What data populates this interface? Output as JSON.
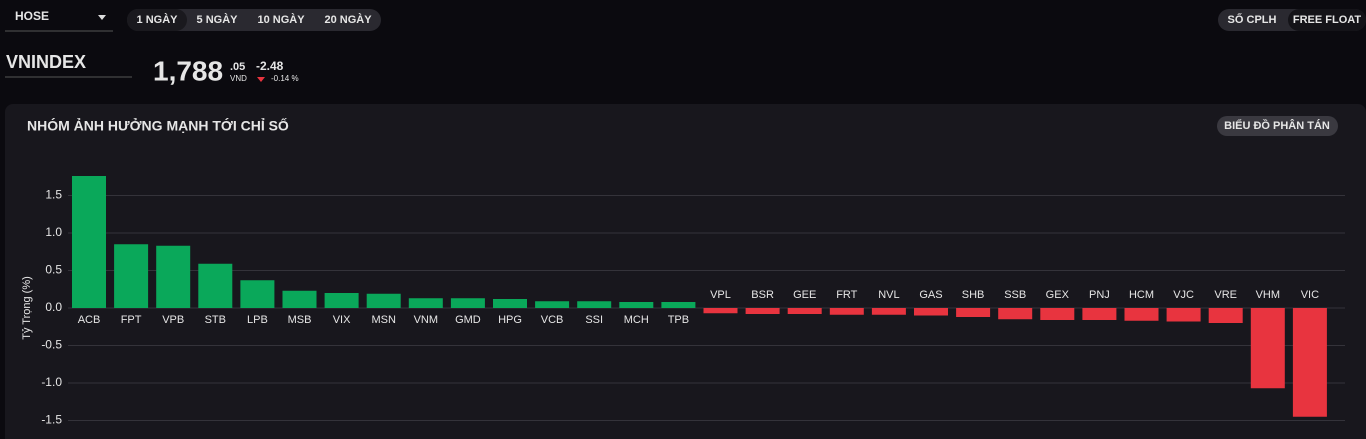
{
  "header": {
    "exchange": "HOSE",
    "periods": [
      "1 NGÀY",
      "5 NGÀY",
      "10 NGÀY",
      "20 NGÀY"
    ],
    "weights": [
      "SỐ CPLH",
      "FREE FLOAT"
    ]
  },
  "index": {
    "name": "VNINDEX",
    "price": "1,788",
    "price_decimals": ".05",
    "currency": "VND",
    "change": "-2.48",
    "change_pct": "-0.14 %"
  },
  "panel": {
    "button": "BIỂU ĐỒ PHÂN TÁN"
  },
  "chart_data": {
    "type": "bar",
    "title": "NHÓM ẢNH HƯỞNG MẠNH TỚI CHỈ SỐ",
    "y_label": "Tỷ Trọng (%)",
    "categories": [
      "ACB",
      "FPT",
      "VPB",
      "STB",
      "LPB",
      "MSB",
      "VIX",
      "MSN",
      "VNM",
      "GMD",
      "HPG",
      "VCB",
      "SSI",
      "MCH",
      "TPB",
      "VPL",
      "BSR",
      "GEE",
      "FRT",
      "NVL",
      "GAS",
      "SHB",
      "SSB",
      "GEX",
      "PNJ",
      "HCM",
      "VJC",
      "VRE",
      "VHM",
      "VIC"
    ],
    "values": [
      1.76,
      0.85,
      0.83,
      0.59,
      0.37,
      0.23,
      0.2,
      0.19,
      0.13,
      0.13,
      0.12,
      0.09,
      0.09,
      0.08,
      0.08,
      -0.07,
      -0.08,
      -0.08,
      -0.09,
      -0.09,
      -0.1,
      -0.12,
      -0.15,
      -0.16,
      -0.16,
      -0.17,
      -0.18,
      -0.2,
      -1.07,
      -1.45
    ],
    "colors": {
      "positive": "#0aa85a",
      "negative": "#e8343f"
    },
    "ylim": [
      -1.75,
      2.1
    ],
    "yticks": [
      -1.5,
      {
        "value": -1,
        "label": "-1.0"
      },
      -0.5,
      {
        "value": 0,
        "label": "0.0"
      },
      0.5,
      {
        "value": 1,
        "label": "1.0"
      },
      1.5
    ],
    "grid": true
  }
}
